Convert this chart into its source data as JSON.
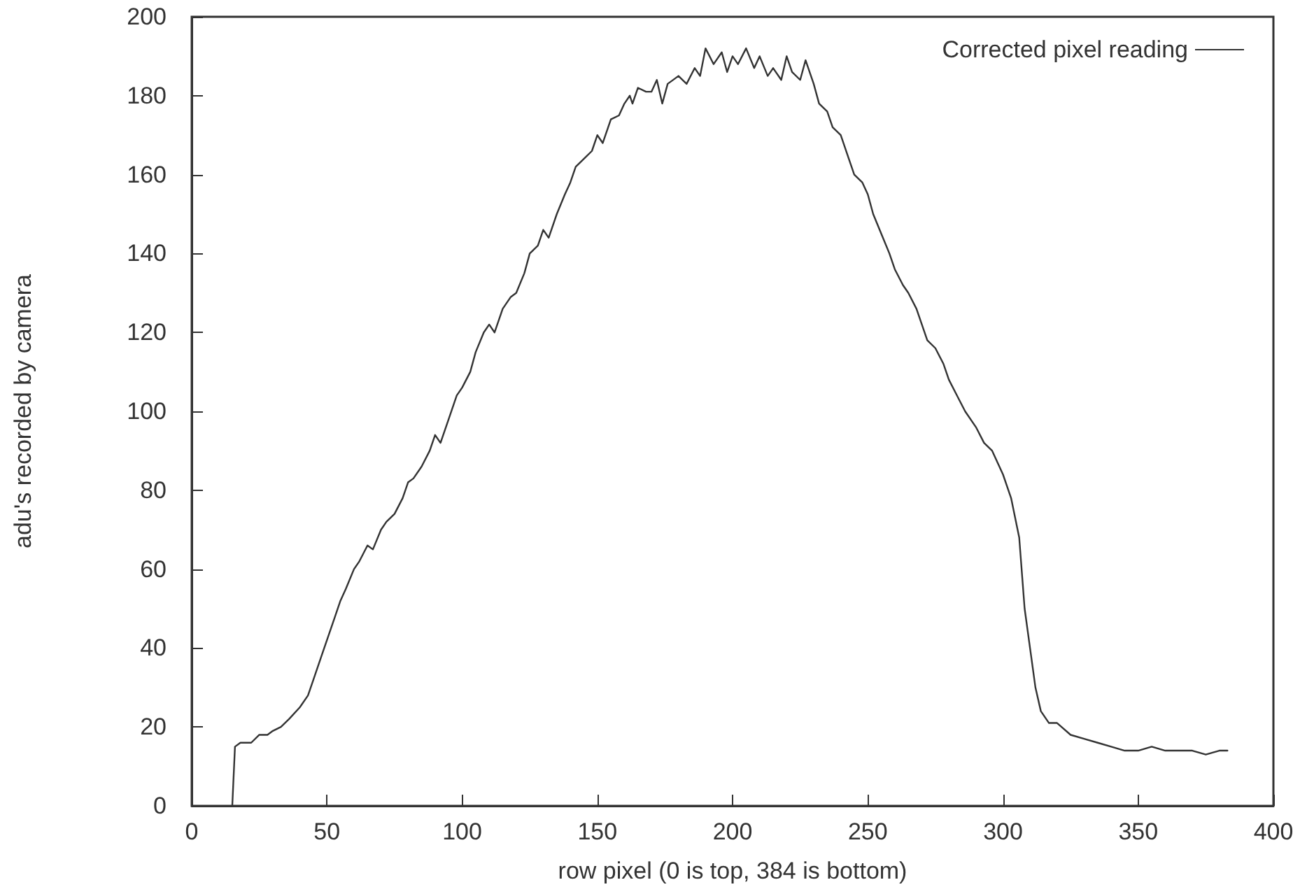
{
  "chart_data": {
    "type": "line",
    "xlabel": "row pixel (0 is top, 384 is bottom)",
    "ylabel": "adu's recorded by camera",
    "xlim": [
      0,
      400
    ],
    "xticks": [
      0,
      50,
      100,
      150,
      200,
      250,
      300,
      350,
      400
    ],
    "ylim": [
      0,
      200
    ],
    "yticks": [
      0,
      20,
      40,
      60,
      80,
      100,
      120,
      140,
      160,
      180,
      200
    ],
    "grid": false,
    "legend": "top right",
    "marker": "none",
    "line_style": "solid",
    "series": [
      {
        "name": "Corrected pixel reading",
        "color": "#333333",
        "x": [
          15,
          16,
          18,
          22,
          25,
          28,
          30,
          33,
          36,
          40,
          43,
          45,
          48,
          50,
          53,
          55,
          57,
          60,
          62,
          65,
          67,
          70,
          72,
          75,
          78,
          80,
          82,
          85,
          88,
          90,
          92,
          95,
          98,
          100,
          103,
          105,
          108,
          110,
          112,
          115,
          118,
          120,
          123,
          125,
          128,
          130,
          132,
          135,
          138,
          140,
          142,
          145,
          148,
          150,
          152,
          155,
          158,
          160,
          162,
          163,
          165,
          168,
          170,
          172,
          174,
          176,
          180,
          183,
          186,
          188,
          190,
          193,
          196,
          198,
          200,
          202,
          205,
          208,
          210,
          213,
          215,
          218,
          220,
          222,
          225,
          227,
          230,
          232,
          235,
          237,
          240,
          243,
          245,
          248,
          250,
          252,
          255,
          258,
          260,
          263,
          265,
          268,
          270,
          272,
          275,
          278,
          280,
          283,
          286,
          290,
          293,
          296,
          300,
          303,
          306,
          308,
          310,
          312,
          314,
          317,
          320,
          325,
          330,
          335,
          340,
          345,
          350,
          355,
          360,
          365,
          370,
          375,
          380,
          383
        ],
        "values": [
          0,
          15,
          16,
          16,
          18,
          18,
          19,
          20,
          22,
          25,
          28,
          32,
          38,
          42,
          48,
          52,
          55,
          60,
          62,
          66,
          65,
          70,
          72,
          74,
          78,
          82,
          83,
          86,
          90,
          94,
          92,
          98,
          104,
          106,
          110,
          115,
          120,
          122,
          120,
          126,
          129,
          130,
          135,
          140,
          142,
          146,
          144,
          150,
          155,
          158,
          162,
          164,
          166,
          170,
          168,
          174,
          175,
          178,
          180,
          178,
          182,
          181,
          181,
          184,
          178,
          183,
          185,
          183,
          187,
          185,
          192,
          188,
          191,
          186,
          190,
          188,
          192,
          187,
          190,
          185,
          187,
          184,
          190,
          186,
          184,
          189,
          183,
          178,
          176,
          172,
          170,
          164,
          160,
          158,
          155,
          150,
          145,
          140,
          136,
          132,
          130,
          126,
          122,
          118,
          116,
          112,
          108,
          104,
          100,
          96,
          92,
          90,
          84,
          78,
          68,
          50,
          40,
          30,
          24,
          21,
          21,
          18,
          17,
          16,
          15,
          14,
          14,
          15,
          14,
          14,
          14,
          13,
          14,
          14
        ]
      }
    ]
  }
}
